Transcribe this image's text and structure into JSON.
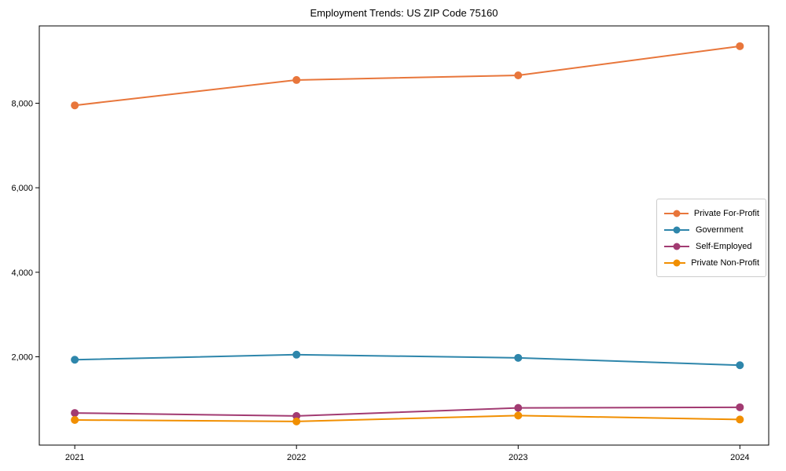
{
  "title": "Employment Trends: US ZIP Code 75160",
  "chart_data": {
    "type": "line",
    "title": "Employment Trends: US ZIP Code 75160",
    "categories": [
      "2021",
      "2022",
      "2023",
      "2024"
    ],
    "series": [
      {
        "name": "Private For-Profit",
        "color": "#E8763B",
        "values": [
          7950,
          8550,
          8660,
          9350
        ]
      },
      {
        "name": "Government",
        "color": "#2E86AB",
        "values": [
          1930,
          2050,
          1975,
          1800
        ]
      },
      {
        "name": "Self-Employed",
        "color": "#A23B72",
        "values": [
          670,
          600,
          790,
          805
        ]
      },
      {
        "name": "Private Non-Profit",
        "color": "#F18F01",
        "values": [
          505,
          470,
          610,
          515
        ]
      }
    ],
    "xlabel": "",
    "ylabel": "",
    "xlim": [
      -0.16,
      3.13
    ],
    "ylim": [
      -90,
      9830
    ],
    "yticks": [
      2000,
      4000,
      6000,
      8000
    ],
    "ytick_labels": [
      "2,000",
      "4,000",
      "6,000",
      "8,000"
    ],
    "grid": false,
    "legend_position": "center right",
    "marker": "circle",
    "frame": "box",
    "axis_color": "#000000"
  }
}
